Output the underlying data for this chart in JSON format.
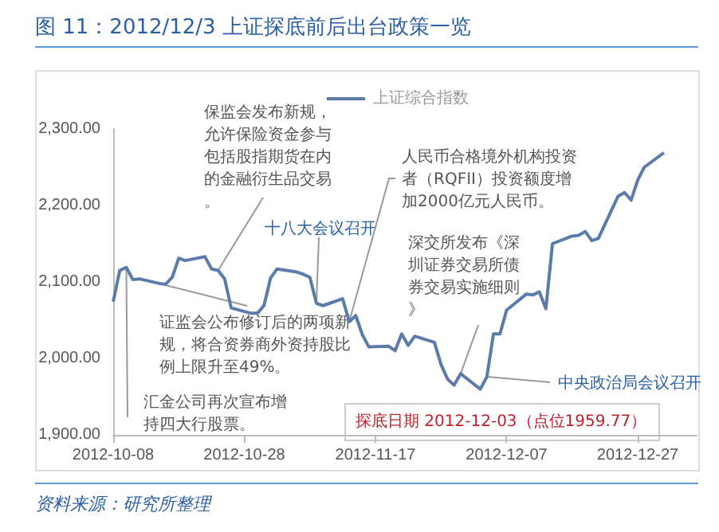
{
  "chart_data": {
    "type": "line",
    "title": "图 11：2012/12/3 上证探底前后出台政策一览",
    "x": [
      "2012-10-08",
      "2012-10-09",
      "2012-10-10",
      "2012-10-11",
      "2012-10-12",
      "2012-10-15",
      "2012-10-16",
      "2012-10-17",
      "2012-10-18",
      "2012-10-19",
      "2012-10-22",
      "2012-10-23",
      "2012-10-24",
      "2012-10-25",
      "2012-10-26",
      "2012-10-29",
      "2012-10-30",
      "2012-10-31",
      "2012-11-01",
      "2012-11-02",
      "2012-11-05",
      "2012-11-06",
      "2012-11-07",
      "2012-11-08",
      "2012-11-09",
      "2012-11-12",
      "2012-11-13",
      "2012-11-14",
      "2012-11-15",
      "2012-11-16",
      "2012-11-19",
      "2012-11-20",
      "2012-11-21",
      "2012-11-22",
      "2012-11-23",
      "2012-11-26",
      "2012-11-27",
      "2012-11-28",
      "2012-11-29",
      "2012-11-30",
      "2012-12-03",
      "2012-12-04",
      "2012-12-05",
      "2012-12-06",
      "2012-12-07",
      "2012-12-10",
      "2012-12-11",
      "2012-12-12",
      "2012-12-13",
      "2012-12-14",
      "2012-12-17",
      "2012-12-18",
      "2012-12-19",
      "2012-12-20",
      "2012-12-21",
      "2012-12-24",
      "2012-12-25",
      "2012-12-26",
      "2012-12-27",
      "2012-12-28",
      "2012-12-31"
    ],
    "series": [
      {
        "name": "上证综合指数",
        "color": "#5b7bab",
        "values": [
          2074,
          2115,
          2119,
          2103,
          2104,
          2098,
          2097,
          2106,
          2131,
          2128,
          2133,
          2117,
          2115,
          2104,
          2066,
          2059,
          2059,
          2069,
          2105,
          2117,
          2113,
          2110,
          2106,
          2072,
          2069,
          2078,
          2048,
          2056,
          2031,
          2015,
          2016,
          2010,
          2032,
          2017,
          2029,
          2021,
          1992,
          1973,
          1965,
          1980,
          1959.77,
          1976,
          2032,
          2032,
          2063,
          2084,
          2083,
          2087,
          2065,
          2150,
          2160,
          2161,
          2166,
          2154,
          2157,
          2212,
          2217,
          2207,
          2233,
          2250,
          2269
        ]
      }
    ],
    "xlim": [
      "2012-10-08",
      "2013-01-05"
    ],
    "xticks": [
      "2012-10-08",
      "2012-10-28",
      "2012-11-17",
      "2012-12-07",
      "2012-12-27"
    ],
    "ylim": [
      1900,
      2300
    ],
    "yticks": [
      {
        "value": 1900,
        "label": "1,900.00"
      },
      {
        "value": 2000,
        "label": "2,000.00"
      },
      {
        "value": 2100,
        "label": "2,100.00"
      },
      {
        "value": 2200,
        "label": "2,200.00"
      },
      {
        "value": 2300,
        "label": "2,300.00"
      }
    ],
    "grid": false,
    "legend": "top",
    "marker": "none",
    "line_style": "solid",
    "annotations": [
      {
        "text": "汇金公司再次宣布增持四大行股票。",
        "x": "2012-10-10",
        "y": 2119
      },
      {
        "text": "保监会发布新规，允许保险资金参与包括股指期货在内的金融衍生品交易。",
        "x": "2012-10-24",
        "y": 2115
      },
      {
        "text": "证监会公布修订后的两项新规，将合资券商外资持股比例上限升至49%。",
        "x": "2012-10-15",
        "y": 2098
      },
      {
        "text": "十八大会议召开",
        "x": "2012-11-08",
        "y": 2072
      },
      {
        "text": "人民币合格境外机构投资者（RQFII）投资额度增加2000亿元人民币。",
        "x": "2012-11-13",
        "y": 2048
      },
      {
        "text": "深交所发布《深圳证券交易所债券交易实施细则》",
        "x": "2012-11-30",
        "y": 1980
      },
      {
        "text": "中央政治局会议召开",
        "x": "2012-12-04",
        "y": 1976
      },
      {
        "text": "探底日期 2012-12-03（点位1959.77）",
        "x": "2012-12-03",
        "y": 1959.77
      },
      "资料来源：研究所整理"
    ]
  }
}
